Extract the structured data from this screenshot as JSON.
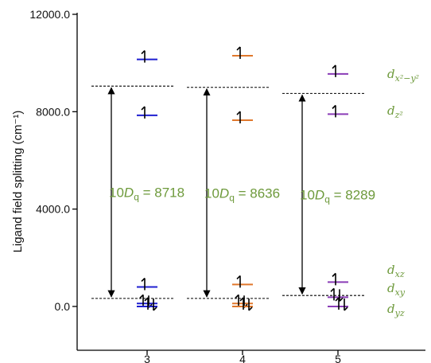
{
  "chart_data": {
    "type": "level-diagram",
    "ylabel": "Ligand field splitting (cm⁻¹)",
    "ylim": [
      -1800,
      12000
    ],
    "yticks": [
      {
        "value": 0,
        "label": "0.0"
      },
      {
        "value": 4000,
        "label": "4000.0"
      },
      {
        "value": 8000,
        "label": "8000.0"
      },
      {
        "value": 12000,
        "label": "12000.0"
      }
    ],
    "categories": [
      "3",
      "4",
      "5"
    ],
    "series": [
      {
        "category": "3",
        "color": "#1f1fd0",
        "levels": [
          {
            "value": 10150,
            "electrons": "1"
          },
          {
            "value": 7850,
            "electrons": "1"
          },
          {
            "value": 800,
            "electrons": "1"
          },
          {
            "value": 120,
            "electrons": "11"
          },
          {
            "value": 0,
            "electrons": "11"
          }
        ],
        "gap": {
          "label_prefix": "10D",
          "label_sub": "q",
          "label_value": " = 8718",
          "top": 9050,
          "bottom": 330
        }
      },
      {
        "category": "4",
        "color": "#e0782c",
        "levels": [
          {
            "value": 10300,
            "electrons": "1"
          },
          {
            "value": 7650,
            "electrons": "1"
          },
          {
            "value": 900,
            "electrons": "1"
          },
          {
            "value": 120,
            "electrons": "11"
          },
          {
            "value": 0,
            "electrons": "11"
          }
        ],
        "gap": {
          "label_prefix": "10D",
          "label_sub": "q",
          "label_value": " = 8636",
          "top": 9000,
          "bottom": 330
        }
      },
      {
        "category": "5",
        "color": "#8a3cb6",
        "levels": [
          {
            "value": 9550,
            "electrons": "1"
          },
          {
            "value": 7900,
            "electrons": "1"
          },
          {
            "value": 1000,
            "electrons": "1"
          },
          {
            "value": 380,
            "electrons": "11"
          },
          {
            "value": 0,
            "electrons": "11"
          }
        ],
        "gap": {
          "label_prefix": "10D",
          "label_sub": "q",
          "label_value": " = 8289",
          "top": 8750,
          "bottom": 450
        }
      }
    ],
    "orbital_labels": [
      {
        "letter": "d",
        "sub": "x²−y²",
        "value": 9550
      },
      {
        "letter": "d",
        "sub": "z²",
        "value": 8050
      },
      {
        "letter": "d",
        "sub": "xz",
        "value": 1500
      },
      {
        "letter": "d",
        "sub": "xy",
        "value": 750
      },
      {
        "letter": "d",
        "sub": "yz",
        "value": -100
      }
    ],
    "colors": {
      "gap_label": "#6e9a3c",
      "orbital_label": "#6e9a3c"
    }
  }
}
